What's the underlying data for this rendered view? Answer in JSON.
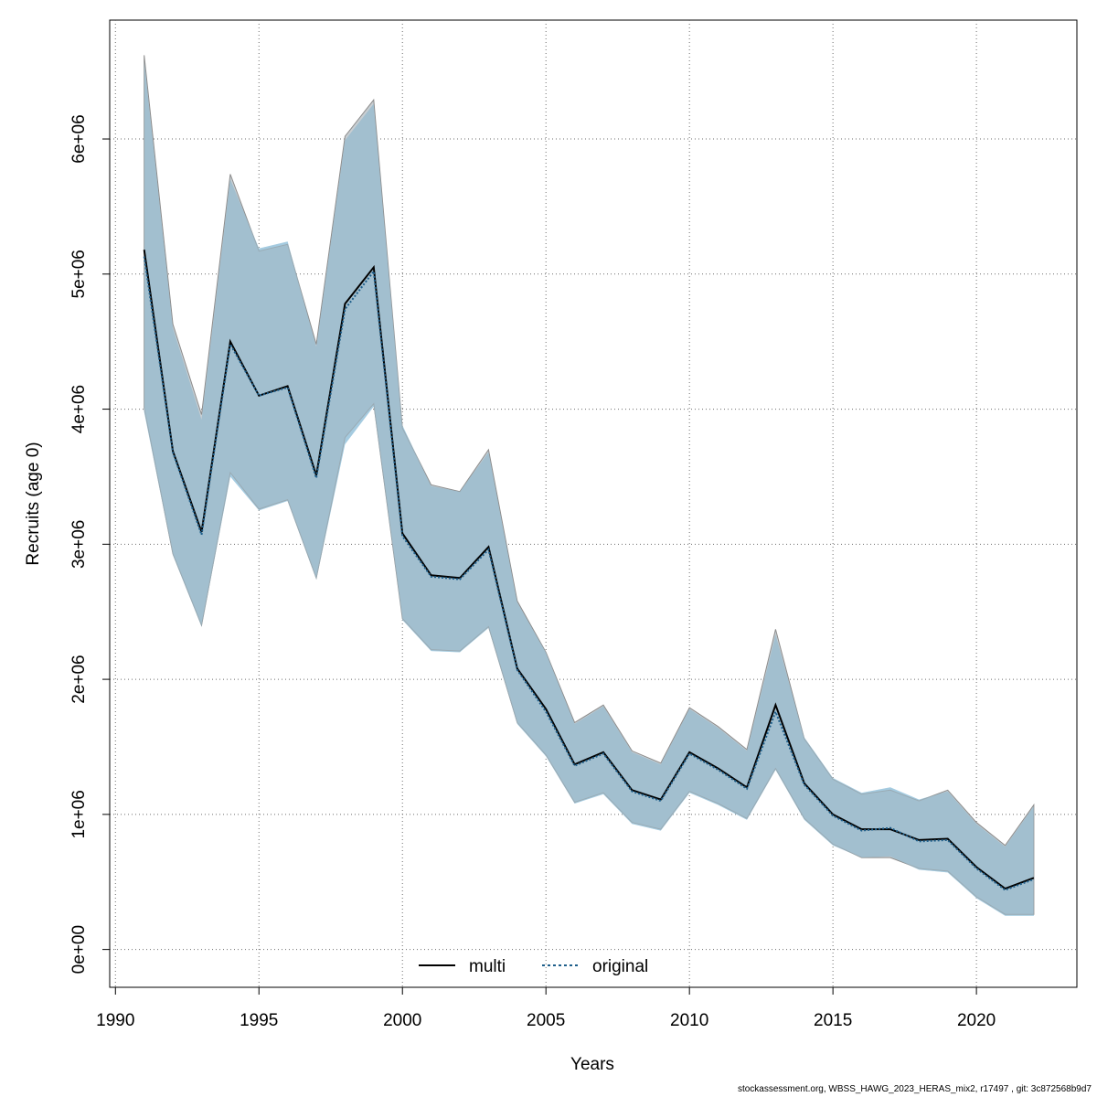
{
  "chart_data": {
    "type": "line",
    "title": "",
    "xlabel": "Years",
    "ylabel": "Recruits (age 0)",
    "xlim": [
      1989.8,
      2023.5
    ],
    "ylim": [
      -280000,
      6880000
    ],
    "grid": true,
    "legend_position": "bottom-center",
    "x_ticks": [
      1990,
      1995,
      2000,
      2005,
      2010,
      2015,
      2020
    ],
    "x_tick_labels": [
      "1990",
      "1995",
      "2000",
      "2005",
      "2010",
      "2015",
      "2020"
    ],
    "y_ticks": [
      0,
      1000000,
      2000000,
      3000000,
      4000000,
      5000000,
      6000000
    ],
    "y_tick_labels": [
      "0e+00",
      "1e+06",
      "2e+06",
      "3e+06",
      "4e+06",
      "5e+06",
      "6e+06"
    ],
    "x": [
      1991,
      1992,
      1993,
      1994,
      1995,
      1996,
      1997,
      1998,
      1999,
      2000,
      2001,
      2002,
      2003,
      2004,
      2005,
      2006,
      2007,
      2008,
      2009,
      2010,
      2011,
      2012,
      2013,
      2014,
      2015,
      2016,
      2017,
      2018,
      2019,
      2020,
      2021,
      2022
    ],
    "series": [
      {
        "name": "multi",
        "color": "#000000",
        "dash": "solid",
        "values": [
          5180000,
          3690000,
          3090000,
          4500000,
          4100000,
          4170000,
          3510000,
          4780000,
          5050000,
          3080000,
          2770000,
          2750000,
          2980000,
          2080000,
          1780000,
          1370000,
          1460000,
          1180000,
          1110000,
          1460000,
          1340000,
          1200000,
          1810000,
          1230000,
          1000000,
          890000,
          890000,
          810000,
          820000,
          610000,
          450000,
          530000
        ],
        "band_lower": [
          4010000,
          2930000,
          2400000,
          3530000,
          3260000,
          3330000,
          2750000,
          3790000,
          4040000,
          2450000,
          2220000,
          2210000,
          2390000,
          1680000,
          1440000,
          1090000,
          1160000,
          940000,
          890000,
          1170000,
          1080000,
          970000,
          1340000,
          970000,
          780000,
          680000,
          680000,
          600000,
          580000,
          390000,
          260000,
          260000
        ],
        "band_upper": [
          6620000,
          4630000,
          3960000,
          5740000,
          5170000,
          5220000,
          4480000,
          6020000,
          6290000,
          3860000,
          3440000,
          3390000,
          3700000,
          2580000,
          2200000,
          1680000,
          1810000,
          1470000,
          1380000,
          1790000,
          1650000,
          1480000,
          2370000,
          1560000,
          1260000,
          1150000,
          1180000,
          1100000,
          1180000,
          940000,
          770000,
          1070000
        ]
      },
      {
        "name": "original",
        "color": "#1f5f8b",
        "dash": "dotted",
        "values": [
          5130000,
          3680000,
          3070000,
          4480000,
          4100000,
          4160000,
          3490000,
          4740000,
          5020000,
          3060000,
          2760000,
          2740000,
          2960000,
          2070000,
          1760000,
          1360000,
          1450000,
          1170000,
          1100000,
          1450000,
          1330000,
          1190000,
          1760000,
          1220000,
          990000,
          880000,
          900000,
          800000,
          810000,
          600000,
          440000,
          520000
        ],
        "band_lower": [
          3980000,
          2920000,
          2390000,
          3500000,
          3250000,
          3320000,
          2740000,
          3740000,
          4020000,
          2440000,
          2210000,
          2200000,
          2380000,
          1670000,
          1430000,
          1080000,
          1150000,
          930000,
          880000,
          1160000,
          1070000,
          960000,
          1330000,
          960000,
          770000,
          680000,
          690000,
          590000,
          570000,
          380000,
          250000,
          250000
        ],
        "band_upper": [
          6580000,
          4600000,
          3920000,
          5700000,
          5190000,
          5240000,
          4460000,
          5990000,
          6260000,
          3880000,
          3430000,
          3390000,
          3680000,
          2570000,
          2200000,
          1670000,
          1800000,
          1460000,
          1370000,
          1780000,
          1640000,
          1470000,
          2330000,
          1570000,
          1270000,
          1160000,
          1200000,
          1110000,
          1170000,
          930000,
          760000,
          1060000
        ]
      }
    ]
  },
  "colors": {
    "band_multi": "#9aa5ad",
    "band_original": "#a6d5ef",
    "band_overlap": "#a4c3d4",
    "grid": "#6e6e6e"
  },
  "footer": "stockassessment.org, WBSS_HAWG_2023_HERAS_mix2, r17497 , git: 3c872568b9d7"
}
